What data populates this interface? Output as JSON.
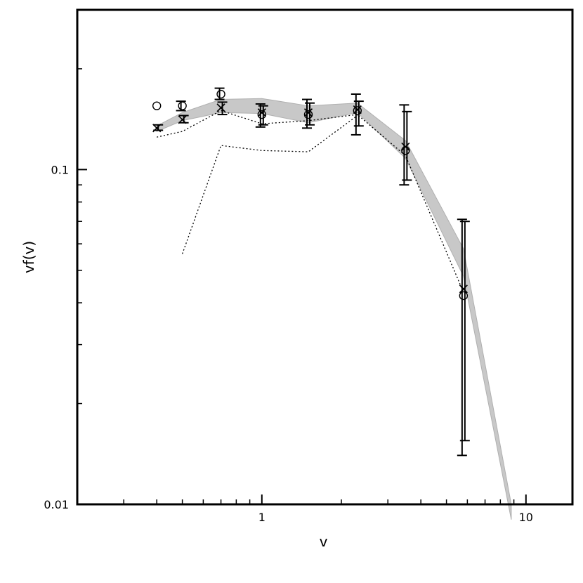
{
  "chart_data": {
    "type": "scatter",
    "title": "",
    "xlabel": "v",
    "ylabel": "vf(v)",
    "x_scale": "log",
    "y_scale": "log",
    "xlim": [
      0.2,
      15
    ],
    "ylim": [
      0.01,
      0.3
    ],
    "x_ticklabels": [
      {
        "value": 1,
        "label": "1"
      },
      {
        "value": 10,
        "label": "10"
      }
    ],
    "y_ticklabels": [
      {
        "value": 0.01,
        "label": "0.01"
      },
      {
        "value": 0.1,
        "label": "0.1"
      }
    ],
    "grid": false,
    "band": {
      "name": "shaded band",
      "color": "#c8c8c8",
      "x": [
        0.4,
        0.5,
        0.7,
        1.0,
        1.5,
        2.3,
        3.5,
        5.8,
        8.8
      ],
      "upper": [
        0.135,
        0.148,
        0.162,
        0.163,
        0.155,
        0.158,
        0.122,
        0.058,
        0.01
      ],
      "lower": [
        0.13,
        0.14,
        0.148,
        0.147,
        0.138,
        0.148,
        0.108,
        0.048,
        0.009
      ]
    },
    "series": [
      {
        "marker": "circle",
        "x": [
          0.4,
          0.5,
          0.7,
          1.0,
          1.5,
          2.3,
          3.5,
          5.8
        ],
        "y": [
          0.155,
          0.155,
          0.168,
          0.146,
          0.146,
          0.15,
          0.114,
          0.042
        ],
        "yerr_low": [
          null,
          0.15,
          0.162,
          0.134,
          0.133,
          0.127,
          0.09,
          0.014
        ],
        "yerr_high": [
          null,
          0.16,
          0.175,
          0.157,
          0.162,
          0.168,
          0.156,
          0.071
        ]
      },
      {
        "marker": "cross",
        "x": [
          0.4,
          0.5,
          0.7,
          1.0,
          1.5,
          2.3,
          3.5,
          5.8
        ],
        "y": [
          0.133,
          0.141,
          0.153,
          0.148,
          0.148,
          0.151,
          0.117,
          0.044
        ],
        "yerr_low": [
          0.131,
          0.138,
          0.146,
          0.136,
          0.136,
          0.135,
          0.093,
          0.0155
        ],
        "yerr_high": [
          0.136,
          0.145,
          0.159,
          0.155,
          0.158,
          0.16,
          0.149,
          0.07
        ]
      },
      {
        "line_style": "dotted",
        "x": [
          0.4,
          0.5,
          0.7,
          1.0,
          1.5,
          2.3,
          3.5,
          5.8
        ],
        "y": [
          0.125,
          0.13,
          0.15,
          0.137,
          0.14,
          0.146,
          0.11,
          0.043
        ]
      },
      {
        "line_style": "dotted",
        "x": [
          0.5,
          0.7,
          1.0,
          1.5,
          2.3
        ],
        "y": [
          0.056,
          0.118,
          0.114,
          0.113,
          0.145
        ]
      }
    ]
  }
}
